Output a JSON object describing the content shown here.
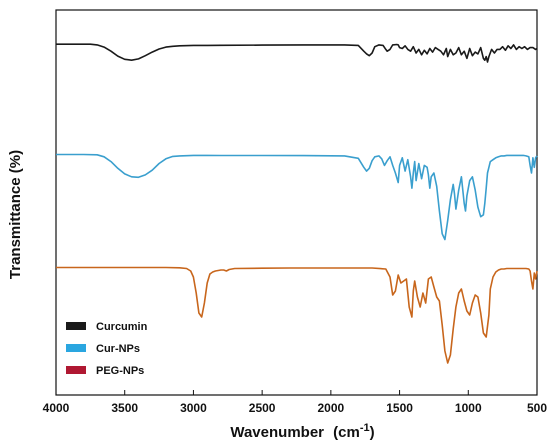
{
  "chart_data": {
    "type": "line",
    "title": "",
    "xlabel": "Wavenumber",
    "xlabel_unit_prefix": "(cm",
    "xlabel_unit_exp": "-1",
    "xlabel_unit_suffix": ")",
    "ylabel": "Transmittance (%)",
    "x_reversed": true,
    "xlim": [
      4000,
      500
    ],
    "xticks": [
      4000,
      3500,
      3000,
      2500,
      2000,
      1500,
      1000,
      500
    ],
    "y_ticks_shown": false,
    "grid": false,
    "legend_position": "bottom-left",
    "series": [
      {
        "name": "Curcumin",
        "color": "#1a1a1a",
        "legend_color": "#1a1a1a",
        "x": [
          4000,
          3900,
          3800,
          3750,
          3700,
          3650,
          3600,
          3550,
          3500,
          3450,
          3400,
          3350,
          3300,
          3250,
          3200,
          3150,
          3100,
          3000,
          2900,
          2800,
          2500,
          2200,
          1900,
          1800,
          1760,
          1740,
          1720,
          1700,
          1680,
          1650,
          1620,
          1600,
          1590,
          1570,
          1550,
          1520,
          1510,
          1500,
          1480,
          1460,
          1440,
          1420,
          1400,
          1380,
          1360,
          1340,
          1320,
          1300,
          1280,
          1260,
          1240,
          1220,
          1200,
          1180,
          1160,
          1150,
          1130,
          1110,
          1090,
          1070,
          1050,
          1030,
          1010,
          990,
          970,
          950,
          930,
          910,
          890,
          880,
          870,
          860,
          850,
          830,
          810,
          790,
          770,
          750,
          730,
          710,
          690,
          670,
          650,
          630,
          610,
          590,
          570,
          550,
          530,
          510,
          500
        ],
        "y": [
          0.2,
          0.2,
          0.2,
          0.2,
          1.0,
          3.5,
          8.0,
          13.5,
          17.0,
          18.0,
          16.5,
          13.0,
          9.0,
          5.5,
          3.5,
          2.5,
          2.0,
          1.6,
          1.5,
          1.4,
          1.2,
          1.0,
          1.0,
          1.5,
          8,
          11,
          13,
          10,
          3,
          1,
          1.5,
          6,
          8,
          6,
          1,
          0.5,
          1,
          4,
          5,
          2,
          6,
          8,
          3,
          10,
          6,
          12,
          7,
          11,
          5,
          9,
          4,
          6,
          8,
          12,
          5,
          14,
          6,
          12,
          10,
          4,
          12,
          8,
          16,
          5,
          13,
          9,
          11,
          4,
          16,
          18,
          14,
          20,
          14,
          6,
          10,
          6,
          6,
          3,
          7,
          2,
          5,
          1,
          6,
          3,
          5,
          3,
          6,
          4,
          4,
          6,
          5
        ]
      },
      {
        "name": "Cur-NPs",
        "color": "#3a9fce",
        "legend_color": "#2aa6e0",
        "x": [
          4000,
          3900,
          3800,
          3700,
          3650,
          3600,
          3550,
          3500,
          3450,
          3400,
          3350,
          3300,
          3250,
          3200,
          3150,
          3100,
          3000,
          2900,
          2800,
          2500,
          2200,
          1900,
          1800,
          1760,
          1740,
          1720,
          1700,
          1680,
          1650,
          1630,
          1610,
          1590,
          1570,
          1550,
          1530,
          1510,
          1500,
          1480,
          1460,
          1440,
          1420,
          1410,
          1400,
          1390,
          1380,
          1360,
          1340,
          1320,
          1300,
          1290,
          1280,
          1270,
          1250,
          1230,
          1210,
          1190,
          1170,
          1150,
          1130,
          1110,
          1100,
          1090,
          1070,
          1050,
          1030,
          1020,
          1010,
          990,
          970,
          950,
          930,
          910,
          890,
          880,
          870,
          860,
          850,
          840,
          820,
          800,
          780,
          760,
          740,
          720,
          700,
          680,
          660,
          640,
          620,
          600,
          580,
          560,
          550,
          540,
          530,
          520,
          510,
          500
        ],
        "y": [
          0.5,
          0.5,
          0.5,
          0.8,
          3.0,
          8.0,
          15.0,
          21.0,
          24.0,
          24.5,
          22.0,
          17.0,
          10.0,
          5.0,
          2.5,
          2.0,
          1.5,
          1.5,
          1.6,
          1.6,
          1.7,
          2.0,
          4.5,
          14,
          18,
          15,
          7,
          3,
          2,
          5,
          12,
          7,
          3,
          12,
          20,
          30,
          12,
          4,
          18,
          6,
          24,
          36,
          20,
          8,
          28,
          10,
          26,
          12,
          14,
          22,
          36,
          24,
          20,
          34,
          60,
          84,
          90,
          70,
          48,
          32,
          42,
          58,
          38,
          24,
          52,
          60,
          44,
          28,
          24,
          38,
          56,
          66,
          64,
          52,
          36,
          20,
          14,
          8,
          6,
          4,
          3,
          2,
          2,
          1.5,
          1.5,
          1.5,
          1.5,
          1.5,
          1.5,
          1.5,
          2,
          3,
          12,
          20,
          4,
          14,
          4,
          2
        ]
      },
      {
        "name": "PEG-NPs",
        "color": "#c8661c",
        "legend_color": "#b01832",
        "x": [
          4000,
          3900,
          3800,
          3700,
          3600,
          3500,
          3400,
          3300,
          3200,
          3100,
          3050,
          3020,
          3000,
          2980,
          2960,
          2940,
          2920,
          2900,
          2880,
          2860,
          2840,
          2820,
          2800,
          2780,
          2760,
          2740,
          2720,
          2700,
          2500,
          2300,
          2100,
          1900,
          1800,
          1700,
          1600,
          1570,
          1550,
          1530,
          1510,
          1490,
          1470,
          1450,
          1430,
          1410,
          1400,
          1390,
          1370,
          1350,
          1330,
          1310,
          1290,
          1270,
          1250,
          1230,
          1210,
          1190,
          1170,
          1150,
          1130,
          1110,
          1090,
          1070,
          1050,
          1030,
          1010,
          990,
          970,
          950,
          930,
          910,
          890,
          870,
          850,
          840,
          820,
          800,
          780,
          760,
          740,
          720,
          700,
          680,
          660,
          640,
          620,
          600,
          580,
          560,
          550,
          540,
          530,
          520,
          510,
          500
        ],
        "y": [
          0.5,
          0.5,
          0.5,
          0.5,
          0.5,
          0.5,
          0.5,
          0.5,
          0.5,
          0.8,
          1.5,
          4,
          10,
          26,
          46,
          50,
          36,
          16,
          7,
          5,
          4,
          3.5,
          3,
          3,
          4,
          2.5,
          2,
          1.5,
          1.2,
          1.0,
          1.0,
          1.0,
          1.0,
          1.0,
          2,
          10,
          28,
          24,
          8,
          16,
          14,
          12,
          40,
          50,
          24,
          14,
          30,
          40,
          26,
          36,
          12,
          10,
          20,
          30,
          34,
          58,
          84,
          96,
          88,
          62,
          40,
          26,
          22,
          34,
          44,
          48,
          36,
          28,
          30,
          46,
          66,
          70,
          48,
          22,
          10,
          5,
          3,
          2,
          2,
          1.5,
          1.5,
          1.5,
          1.5,
          1.5,
          1.5,
          1.5,
          1.5,
          2,
          4,
          14,
          22,
          6,
          12,
          4
        ]
      }
    ]
  }
}
